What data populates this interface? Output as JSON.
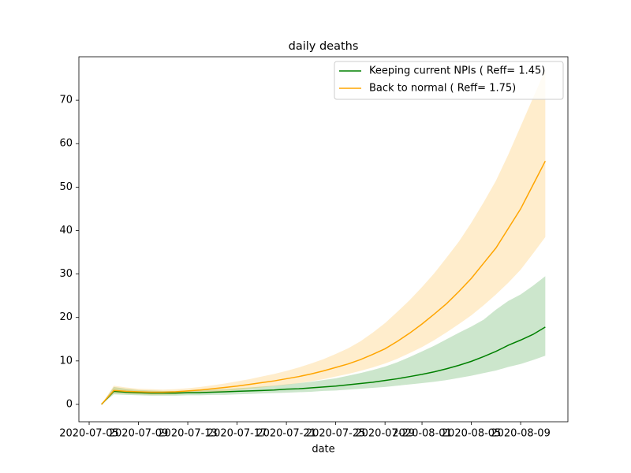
{
  "chart_data": {
    "type": "line",
    "title": "daily deaths",
    "x_label": "date",
    "x": [
      "2020-07-06",
      "2020-07-07",
      "2020-07-08",
      "2020-07-09",
      "2020-07-10",
      "2020-07-11",
      "2020-07-12",
      "2020-07-13",
      "2020-07-14",
      "2020-07-15",
      "2020-07-16",
      "2020-07-17",
      "2020-07-18",
      "2020-07-19",
      "2020-07-20",
      "2020-07-21",
      "2020-07-22",
      "2020-07-23",
      "2020-07-24",
      "2020-07-25",
      "2020-07-26",
      "2020-07-27",
      "2020-07-28",
      "2020-07-29",
      "2020-07-30",
      "2020-07-31",
      "2020-08-01",
      "2020-08-02",
      "2020-08-03",
      "2020-08-04",
      "2020-08-05",
      "2020-08-06",
      "2020-08-07",
      "2020-08-08",
      "2020-08-09",
      "2020-08-10",
      "2020-08-11"
    ],
    "series": [
      {
        "name": "Keeping current NPIs ( Reff= 1.45)",
        "color": "#008000",
        "values": [
          0,
          3.0,
          2.8,
          2.7,
          2.6,
          2.6,
          2.6,
          2.7,
          2.7,
          2.8,
          2.9,
          3.0,
          3.1,
          3.2,
          3.3,
          3.5,
          3.6,
          3.8,
          4.0,
          4.2,
          4.5,
          4.8,
          5.1,
          5.5,
          5.9,
          6.4,
          6.9,
          7.5,
          8.2,
          9.0,
          9.9,
          11.0,
          12.2,
          13.6,
          14.8,
          16.1,
          17.8
        ],
        "upper": [
          0,
          4.0,
          3.6,
          3.3,
          3.2,
          3.1,
          3.1,
          3.2,
          3.3,
          3.4,
          3.5,
          3.7,
          3.9,
          4.1,
          4.3,
          4.6,
          4.9,
          5.2,
          5.6,
          6.0,
          6.6,
          7.2,
          7.9,
          8.7,
          9.7,
          10.9,
          12.2,
          13.5,
          15.0,
          16.5,
          17.9,
          19.5,
          21.8,
          23.8,
          25.3,
          27.3,
          29.5
        ],
        "lower": [
          0,
          2.3,
          2.2,
          2.1,
          2.0,
          2.0,
          2.0,
          2.1,
          2.1,
          2.2,
          2.2,
          2.3,
          2.4,
          2.5,
          2.6,
          2.7,
          2.8,
          2.9,
          3.1,
          3.2,
          3.4,
          3.6,
          3.8,
          4.0,
          4.3,
          4.6,
          4.9,
          5.2,
          5.6,
          6.1,
          6.6,
          7.2,
          7.8,
          8.6,
          9.3,
          10.2,
          11.2
        ]
      },
      {
        "name": "Back to normal ( Reff= 1.75)",
        "color": "#ffa500",
        "values": [
          0,
          3.2,
          3.0,
          2.9,
          2.8,
          2.8,
          2.9,
          3.1,
          3.3,
          3.6,
          3.9,
          4.2,
          4.6,
          5.0,
          5.4,
          5.9,
          6.4,
          7.0,
          7.7,
          8.5,
          9.3,
          10.3,
          11.5,
          12.8,
          14.5,
          16.4,
          18.5,
          20.8,
          23.2,
          26.0,
          29.0,
          32.5,
          36.0,
          40.5,
          45.0,
          50.5,
          56.0
        ],
        "upper": [
          0,
          4.3,
          3.9,
          3.6,
          3.5,
          3.4,
          3.5,
          3.7,
          4.0,
          4.4,
          4.8,
          5.3,
          5.8,
          6.4,
          7.0,
          7.7,
          8.5,
          9.4,
          10.4,
          11.6,
          12.9,
          14.5,
          16.5,
          18.7,
          21.3,
          24.0,
          27.0,
          30.2,
          33.8,
          37.5,
          41.8,
          46.5,
          51.5,
          57.5,
          64.0,
          70.5,
          77.0
        ],
        "lower": [
          0,
          2.5,
          2.4,
          2.3,
          2.2,
          2.2,
          2.3,
          2.5,
          2.6,
          2.8,
          3.0,
          3.3,
          3.6,
          3.9,
          4.2,
          4.5,
          4.9,
          5.3,
          5.8,
          6.4,
          7.0,
          7.7,
          8.5,
          9.4,
          10.5,
          11.8,
          13.2,
          14.8,
          16.6,
          18.5,
          20.5,
          22.8,
          25.3,
          28.0,
          31.0,
          34.7,
          38.5
        ]
      }
    ],
    "xlim": [
      "2020-07-04T04:00:00Z",
      "2020-08-12T20:00:00Z"
    ],
    "xticks": [
      "2020-07-05",
      "2020-07-09",
      "2020-07-13",
      "2020-07-17",
      "2020-07-21",
      "2020-07-25",
      "2020-07-29",
      "2020-08-01",
      "2020-08-05",
      "2020-08-09"
    ],
    "ylim": [
      -4,
      80
    ],
    "yticks": [
      0,
      10,
      20,
      30,
      40,
      50,
      60,
      70
    ],
    "legend": "upper right",
    "band_opacity": 0.2
  }
}
